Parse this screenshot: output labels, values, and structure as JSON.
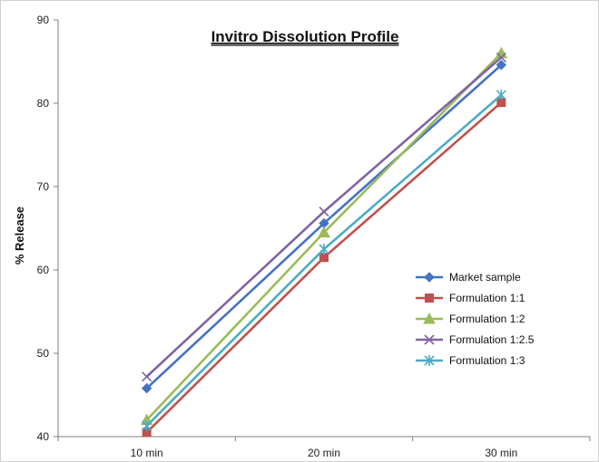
{
  "chart_data": {
    "type": "line",
    "title": "Invitro Dissolution Profile",
    "xlabel": "",
    "ylabel": "% Release",
    "categories": [
      "10 min",
      "20 min",
      "30 min"
    ],
    "ylim": [
      40,
      90
    ],
    "yticks": [
      40,
      50,
      60,
      70,
      80,
      90
    ],
    "grid": false,
    "legend_position": "right",
    "series": [
      {
        "name": "Market sample",
        "values": [
          45.8,
          65.6,
          84.6
        ],
        "color": "#4472C4",
        "marker": "diamond"
      },
      {
        "name": "Formulation 1:1",
        "values": [
          40.5,
          61.5,
          80.1
        ],
        "color": "#C0504D",
        "marker": "square"
      },
      {
        "name": "Formulation 1:2",
        "values": [
          42.0,
          64.5,
          86.0
        ],
        "color": "#9BBB59",
        "marker": "triangle"
      },
      {
        "name": "Formulation 1:2.5",
        "values": [
          47.2,
          67.0,
          85.5
        ],
        "color": "#8064A2",
        "marker": "x"
      },
      {
        "name": "Formulation 1:3",
        "values": [
          41.3,
          62.5,
          81.0
        ],
        "color": "#4BACC6",
        "marker": "star"
      }
    ]
  }
}
